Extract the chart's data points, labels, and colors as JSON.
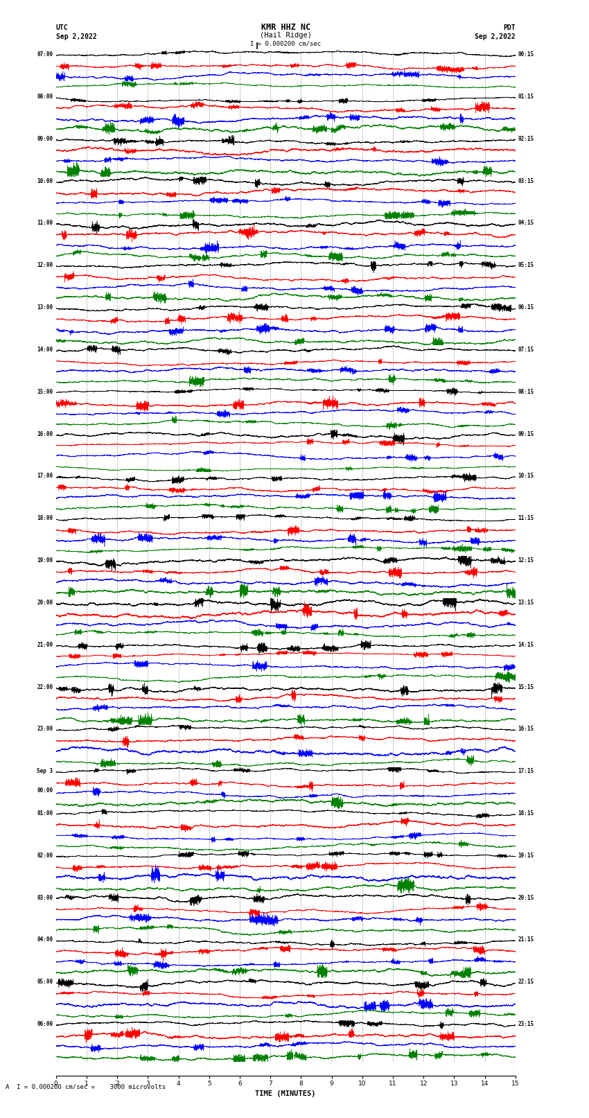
{
  "title_line1": "KMR HHZ NC",
  "title_line2": "(Hail Ridge)",
  "scale_text": "I = 0.000200 cm/sec",
  "left_header1": "UTC",
  "left_header2": "Sep 2,2022",
  "right_header1": "PDT",
  "right_header2": "Sep 2,2022",
  "bottom_label": "TIME (MINUTES)",
  "bottom_note": "A  I = 0.000200 cm/sec =    3000 microvolts",
  "utc_labels": [
    "07:00",
    "08:00",
    "09:00",
    "10:00",
    "11:00",
    "12:00",
    "13:00",
    "14:00",
    "15:00",
    "16:00",
    "17:00",
    "18:00",
    "19:00",
    "20:00",
    "21:00",
    "22:00",
    "23:00",
    "Sep 3",
    "00:00",
    "01:00",
    "02:00",
    "03:00",
    "04:00",
    "05:00",
    "06:00"
  ],
  "utc_is_sep3_row": 17,
  "pdt_labels": [
    "00:15",
    "01:15",
    "02:15",
    "03:15",
    "04:15",
    "05:15",
    "06:15",
    "07:15",
    "08:15",
    "09:15",
    "10:15",
    "11:15",
    "12:15",
    "13:15",
    "14:15",
    "15:15",
    "16:15",
    "17:15",
    "18:15",
    "19:15",
    "20:15",
    "21:15",
    "22:15",
    "23:15"
  ],
  "colors": [
    "black",
    "red",
    "blue",
    "green"
  ],
  "n_rows": 24,
  "traces_per_row": 4,
  "fig_width": 8.5,
  "fig_height": 16.13,
  "dpi": 100,
  "xlim": [
    0,
    15
  ],
  "xticks": [
    0,
    1,
    2,
    3,
    4,
    5,
    6,
    7,
    8,
    9,
    10,
    11,
    12,
    13,
    14,
    15
  ],
  "bg_color": "white",
  "noise_seed": 42
}
